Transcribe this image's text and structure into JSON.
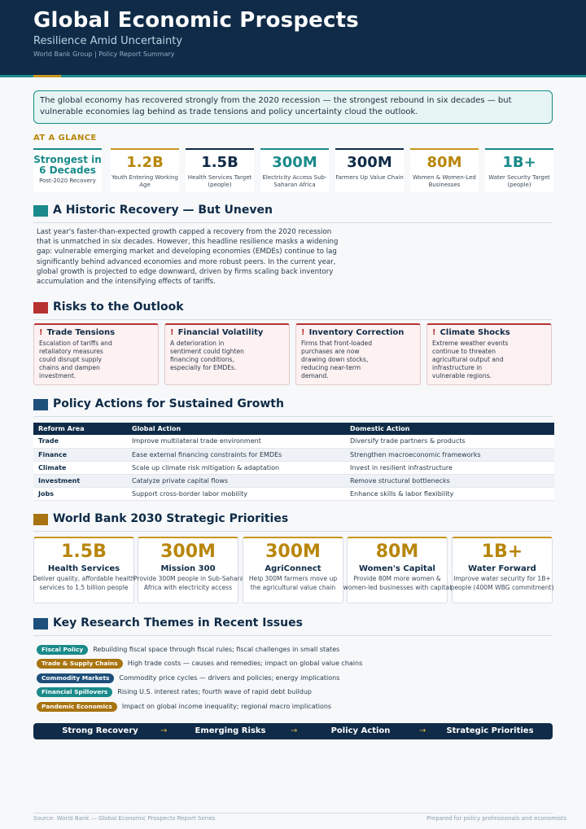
{
  "header": {
    "title": "Global Economic Prospects",
    "subtitle": "Resilience Amid Uncertainty",
    "meta": "World Bank Group  |  Policy Report Summary"
  },
  "callout": "The global economy has recovered strongly from the 2020 recession — the strongest rebound in six decades — but vulnerable economies lag behind as trade tensions and policy uncertainty cloud the outlook.",
  "glance": {
    "label": "AT A GLANCE",
    "stats": [
      {
        "value": "Strongest in 6 Decades",
        "label": "Post-2020 Recovery"
      },
      {
        "value": "1.2B",
        "label": "Youth Entering Working Age"
      },
      {
        "value": "1.5B",
        "label": "Health Services Target (people)"
      },
      {
        "value": "300M",
        "label": "Electricity Access Sub-Saharan Africa"
      },
      {
        "value": "300M",
        "label": "Farmers Up Value Chain"
      },
      {
        "value": "80M",
        "label": "Women & Women-Led Businesses"
      },
      {
        "value": "1B+",
        "label": "Water Security Target (people)"
      }
    ]
  },
  "recovery": {
    "heading": "A Historic Recovery — But Uneven",
    "text": "Last year's faster-than-expected growth capped a recovery from the 2020 recession that is unmatched in six decades. However, this headline resilience masks a widening gap: vulnerable emerging market and developing economies (EMDEs) continue to lag significantly behind advanced economies and more robust peers. In the current year, global growth is projected to edge downward, driven by firms scaling back inventory accumulation and the intensifying effects of tariffs."
  },
  "risks": {
    "heading": "Risks to the Outlook",
    "items": [
      {
        "title": "Trade Tensions",
        "desc": "Escalation of tariffs and retaliatory measures could disrupt supply chains and dampen investment."
      },
      {
        "title": "Financial Volatility",
        "desc": "A deterioration in sentiment could tighten financing conditions, especially for EMDEs."
      },
      {
        "title": "Inventory Correction",
        "desc": "Firms that front-loaded purchases are now drawing down stocks, reducing near-term demand."
      },
      {
        "title": "Climate Shocks",
        "desc": "Extreme weather events continue to threaten agricultural output and infrastructure in vulnerable regions."
      }
    ]
  },
  "policy": {
    "heading": "Policy Actions for Sustained Growth",
    "columns": [
      "Reform Area",
      "Global Action",
      "Domestic Action"
    ],
    "rows": [
      {
        "area": "Trade",
        "global": "Improve multilateral trade environment",
        "domestic": "Diversify trade partners & products"
      },
      {
        "area": "Finance",
        "global": "Ease external financing constraints for EMDEs",
        "domestic": "Strengthen macroeconomic frameworks"
      },
      {
        "area": "Climate",
        "global": "Scale up climate risk mitigation & adaptation",
        "domestic": "Invest in resilient infrastructure"
      },
      {
        "area": "Investment",
        "global": "Catalyze private capital flows",
        "domestic": "Remove structural bottlenecks"
      },
      {
        "area": "Jobs",
        "global": "Support cross-border labor mobility",
        "domestic": "Enhance skills & labor flexibility"
      }
    ]
  },
  "priorities": {
    "heading": "World Bank 2030 Strategic Priorities",
    "items": [
      {
        "value": "1.5B",
        "name": "Health Services",
        "desc1": "Deliver quality, affordable health",
        "desc2": "services to 1.5 billion people"
      },
      {
        "value": "300M",
        "name": "Mission 300",
        "desc1": "Provide 300M people in Sub-Saharan",
        "desc2": "Africa with electricity access"
      },
      {
        "value": "300M",
        "name": "AgriConnect",
        "desc1": "Help 300M farmers move up",
        "desc2": "the agricultural value chain"
      },
      {
        "value": "80M",
        "name": "Women's Capital",
        "desc1": "Provide 80M more women &",
        "desc2": "women-led businesses with capital"
      },
      {
        "value": "1B+",
        "name": "Water Forward",
        "desc1": "Improve water security for 1B+",
        "desc2": "people (400M WBG commitment)"
      }
    ]
  },
  "themes": {
    "heading": "Key Research Themes in Recent Issues",
    "items": [
      {
        "tag": "Fiscal Policy",
        "color": "teal",
        "desc": "Rebuilding fiscal space through fiscal rules; fiscal challenges in small states"
      },
      {
        "tag": "Trade & Supply Chains",
        "color": "gold",
        "desc": "High trade costs — causes and remedies; impact on global value chains"
      },
      {
        "tag": "Commodity Markets",
        "color": "navy",
        "desc": "Commodity price cycles — drivers and policies; energy implications"
      },
      {
        "tag": "Financial Spillovers",
        "color": "teal",
        "desc": "Rising U.S. interest rates; fourth wave of rapid debt buildup"
      },
      {
        "tag": "Pandemic Economics",
        "color": "gold",
        "desc": "Impact on global income inequality; regional macro implications"
      }
    ]
  },
  "flow": {
    "steps": [
      "Strong Recovery",
      "Emerging Risks",
      "Policy Action",
      "Strategic Priorities"
    ],
    "arrow": "→"
  },
  "footer": {
    "left": "Source: World Bank — Global Economic Prospects Report Series",
    "right": "Prepared for policy professionals and economists"
  },
  "colors": {
    "navy": "#0f2b47",
    "teal": "#1a8a8a",
    "gold": "#c8961e",
    "red": "#b83232"
  }
}
